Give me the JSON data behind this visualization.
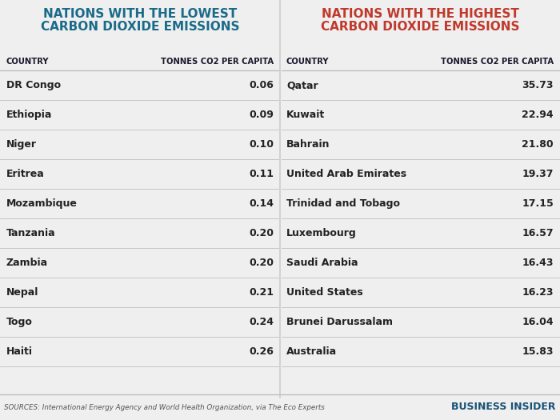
{
  "left_title_line1": "NATIONS WITH THE LOWEST",
  "left_title_line2": "CARBON DIOXIDE EMISSIONS",
  "right_title_line1": "NATIONS WITH THE HIGHEST",
  "right_title_line2": "CARBON DIOXIDE EMISSIONS",
  "left_title_color": "#1a6b8a",
  "right_title_color": "#c0392b",
  "col_header_country": "COUNTRY",
  "col_header_value": "TONNES CO2 PER CAPITA",
  "header_color": "#1a1a2e",
  "bg_color": "#efefef",
  "left_countries": [
    "DR Congo",
    "Ethiopia",
    "Niger",
    "Eritrea",
    "Mozambique",
    "Tanzania",
    "Zambia",
    "Nepal",
    "Togo",
    "Haiti"
  ],
  "left_values": [
    "0.06",
    "0.09",
    "0.10",
    "0.11",
    "0.14",
    "0.20",
    "0.20",
    "0.21",
    "0.24",
    "0.26"
  ],
  "right_countries": [
    "Qatar",
    "Kuwait",
    "Bahrain",
    "United Arab Emirates",
    "Trinidad and Tobago",
    "Luxembourg",
    "Saudi Arabia",
    "United States",
    "Brunei Darussalam",
    "Australia"
  ],
  "right_values": [
    "35.73",
    "22.94",
    "21.80",
    "19.37",
    "17.15",
    "16.57",
    "16.43",
    "16.23",
    "16.04",
    "15.83"
  ],
  "footer_text": "SOURCES: International Energy Agency and World Health Organization, via The Eco Experts",
  "footer_brand": "BUSINESS INSIDER",
  "footer_brand_color": "#1a5276",
  "divider_color": "#bbbbbb",
  "text_color_dark": "#222222",
  "value_color": "#222222"
}
